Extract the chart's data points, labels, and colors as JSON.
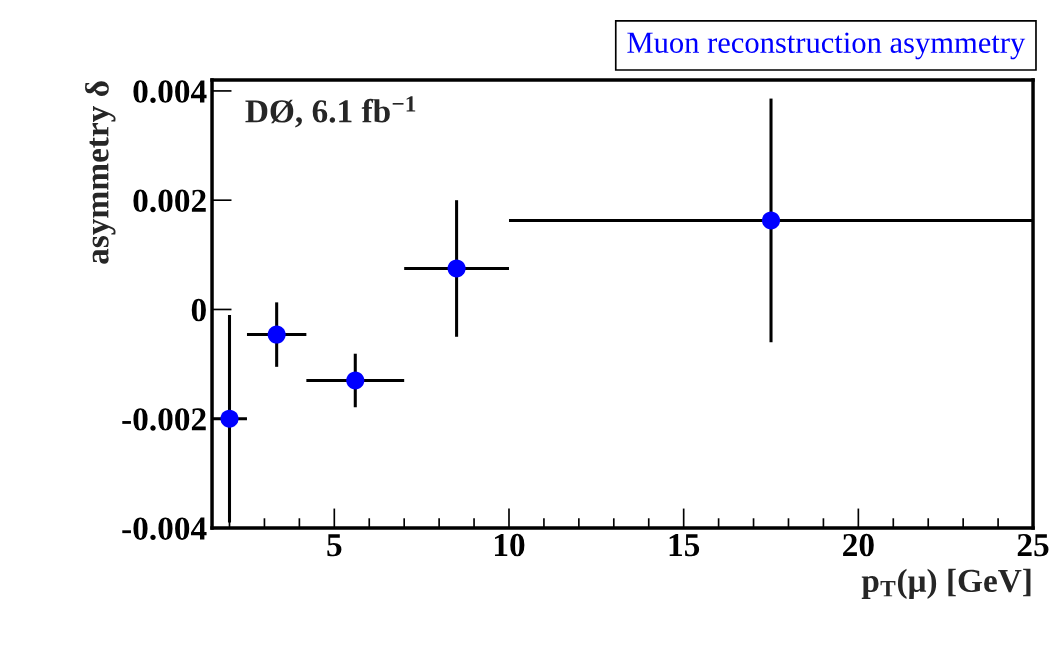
{
  "chart_data": {
    "type": "scatter",
    "title": "Muon reconstruction asymmetry",
    "xlabel": "p$_{T}$(μ) [GeV]",
    "ylabel": "asymmetry δ",
    "annotations": [
      "DØ, 6.1 fb$^{−1}$"
    ],
    "x": [
      2,
      3.35,
      5.6,
      8.5,
      17.5
    ],
    "series": [
      {
        "color": "#0000ff",
        "values": [
          -0.002,
          -0.00046,
          -0.0013,
          0.00075,
          0.00163
        ],
        "errors": [
          0.0019,
          0.00059,
          0.00049,
          0.00125,
          0.00223
        ],
        "xerrors": [
          0.5,
          0.85,
          1.4,
          1.5,
          7.5
        ]
      }
    ],
    "xlim": [
      1.5,
      25
    ],
    "xticks": [
      5,
      10,
      15,
      20,
      25
    ],
    "ylim": [
      -0.004,
      0.0042
    ],
    "yticks": [
      -0.004,
      -0.002,
      0,
      0.002,
      0.004
    ],
    "marker": "circle",
    "grid": false,
    "legend": false
  }
}
